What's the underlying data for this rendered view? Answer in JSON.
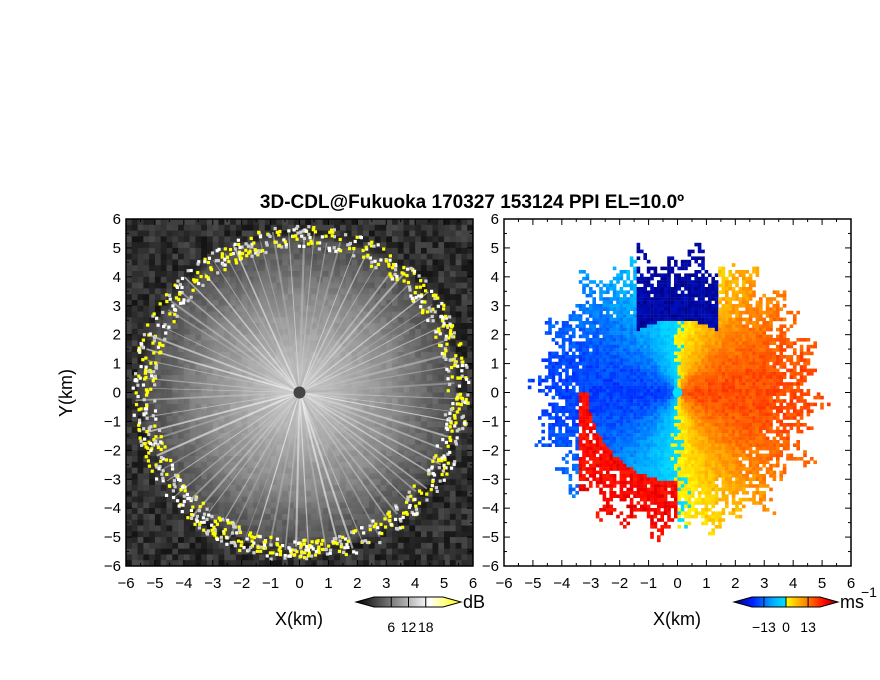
{
  "title": "3D-CDL@Fukuoka 170327 153124 PPI EL=10.0º",
  "chart_data": [
    {
      "type": "heatmap",
      "quantity": "SNR",
      "xlabel": "X(km)",
      "ylabel": "Y(km)",
      "xlim": [
        -6,
        6
      ],
      "ylim": [
        -6,
        6
      ],
      "xticks": [
        "−6",
        "−5",
        "−4",
        "−3",
        "−2",
        "−1",
        "0",
        "1",
        "2",
        "3",
        "4",
        "5",
        "6"
      ],
      "yticks": [
        "−6",
        "−5",
        "−4",
        "−3",
        "−2",
        "−1",
        "0",
        "1",
        "2",
        "3",
        "4",
        "5",
        "6"
      ],
      "colorbar": {
        "unit": "dB",
        "ticks": [
          "6",
          "12",
          "18"
        ],
        "range": [
          0,
          24
        ],
        "colors": [
          "#000000",
          "#ffffff",
          "#ffff00"
        ]
      },
      "field": {
        "center_value_km": [
          0,
          0
        ],
        "echo_radius_km": 5.6
      }
    },
    {
      "type": "heatmap",
      "quantity": "Doppler velocity",
      "xlabel": "X(km)",
      "xlim": [
        -6,
        6
      ],
      "ylim": [
        -6,
        6
      ],
      "xticks": [
        "−6",
        "−5",
        "−4",
        "−3",
        "−2",
        "−1",
        "0",
        "1",
        "2",
        "3",
        "4",
        "5",
        "6"
      ],
      "yticks": [
        "−6",
        "−5",
        "−4",
        "−3",
        "−2",
        "−1",
        "0",
        "1",
        "2",
        "3",
        "4",
        "5",
        "6"
      ],
      "colorbar": {
        "unit": "ms",
        "unit_exponent": "−1",
        "ticks": [
          "−13",
          "0",
          "13"
        ],
        "range": [
          -20,
          20
        ],
        "colors": [
          "#000080",
          "#0020ff",
          "#00b0ff",
          "#00e0ff",
          "#ffff00",
          "#ff8000",
          "#ff0000",
          "#800000"
        ]
      },
      "field": {
        "flow_direction_deg": 180,
        "echo_radius_km": 5.6
      }
    }
  ]
}
